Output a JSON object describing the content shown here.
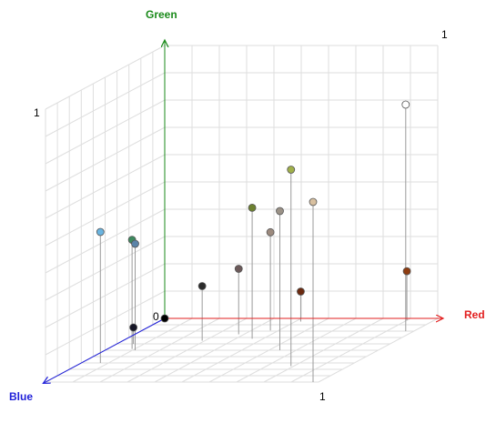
{
  "chart_data": {
    "type": "scatter",
    "subtype": "3d-rgb-color-cube",
    "axes": {
      "x": {
        "label": "Red",
        "color": "#e21f1f",
        "range": [
          0,
          1
        ]
      },
      "y": {
        "label": "Green",
        "color": "#1a8a1a",
        "range": [
          0,
          1
        ]
      },
      "z": {
        "label": "Blue",
        "color": "#1f1fd9",
        "range": [
          0,
          1
        ]
      }
    },
    "tick_labels": {
      "origin": "0",
      "x_max": "1",
      "y_max": "1",
      "top_corner": "1"
    },
    "grid": true,
    "points": [
      {
        "r": 0.0,
        "g": 0.0,
        "b": 0.0,
        "color": "#000000"
      },
      {
        "r": 0.06,
        "g": 0.06,
        "b": 0.4,
        "color": "#151526"
      },
      {
        "r": 0.07,
        "g": 0.48,
        "b": 0.7,
        "color": "#6ab4e0"
      },
      {
        "r": 0.09,
        "g": 0.4,
        "b": 0.48,
        "color": "#3e8a5f"
      },
      {
        "r": 0.11,
        "g": 0.39,
        "b": 0.5,
        "color": "#5b84a8"
      },
      {
        "r": 0.29,
        "g": 0.2,
        "b": 0.35,
        "color": "#2b2b2b"
      },
      {
        "r": 0.38,
        "g": 0.24,
        "b": 0.25,
        "color": "#6c5a5a"
      },
      {
        "r": 0.52,
        "g": 0.11,
        "b": 0.05,
        "color": "#6b2a10"
      },
      {
        "r": 0.47,
        "g": 0.36,
        "b": 0.19,
        "color": "#9c8a7e"
      },
      {
        "r": 0.46,
        "g": 0.48,
        "b": 0.32,
        "color": "#6d8130"
      },
      {
        "r": 0.64,
        "g": 0.51,
        "b": 0.5,
        "color": "#9b9287"
      },
      {
        "r": 0.79,
        "g": 0.72,
        "b": 0.75,
        "color": "#a0b04a"
      },
      {
        "r": 0.9,
        "g": 0.18,
        "b": 0.03,
        "color": "#8e3c10"
      },
      {
        "r": 0.97,
        "g": 0.83,
        "b": 0.2,
        "color": "#ffffff"
      },
      {
        "r": 0.98,
        "g": 0.66,
        "b": 1.0,
        "color": "#d8c0a0"
      }
    ]
  }
}
